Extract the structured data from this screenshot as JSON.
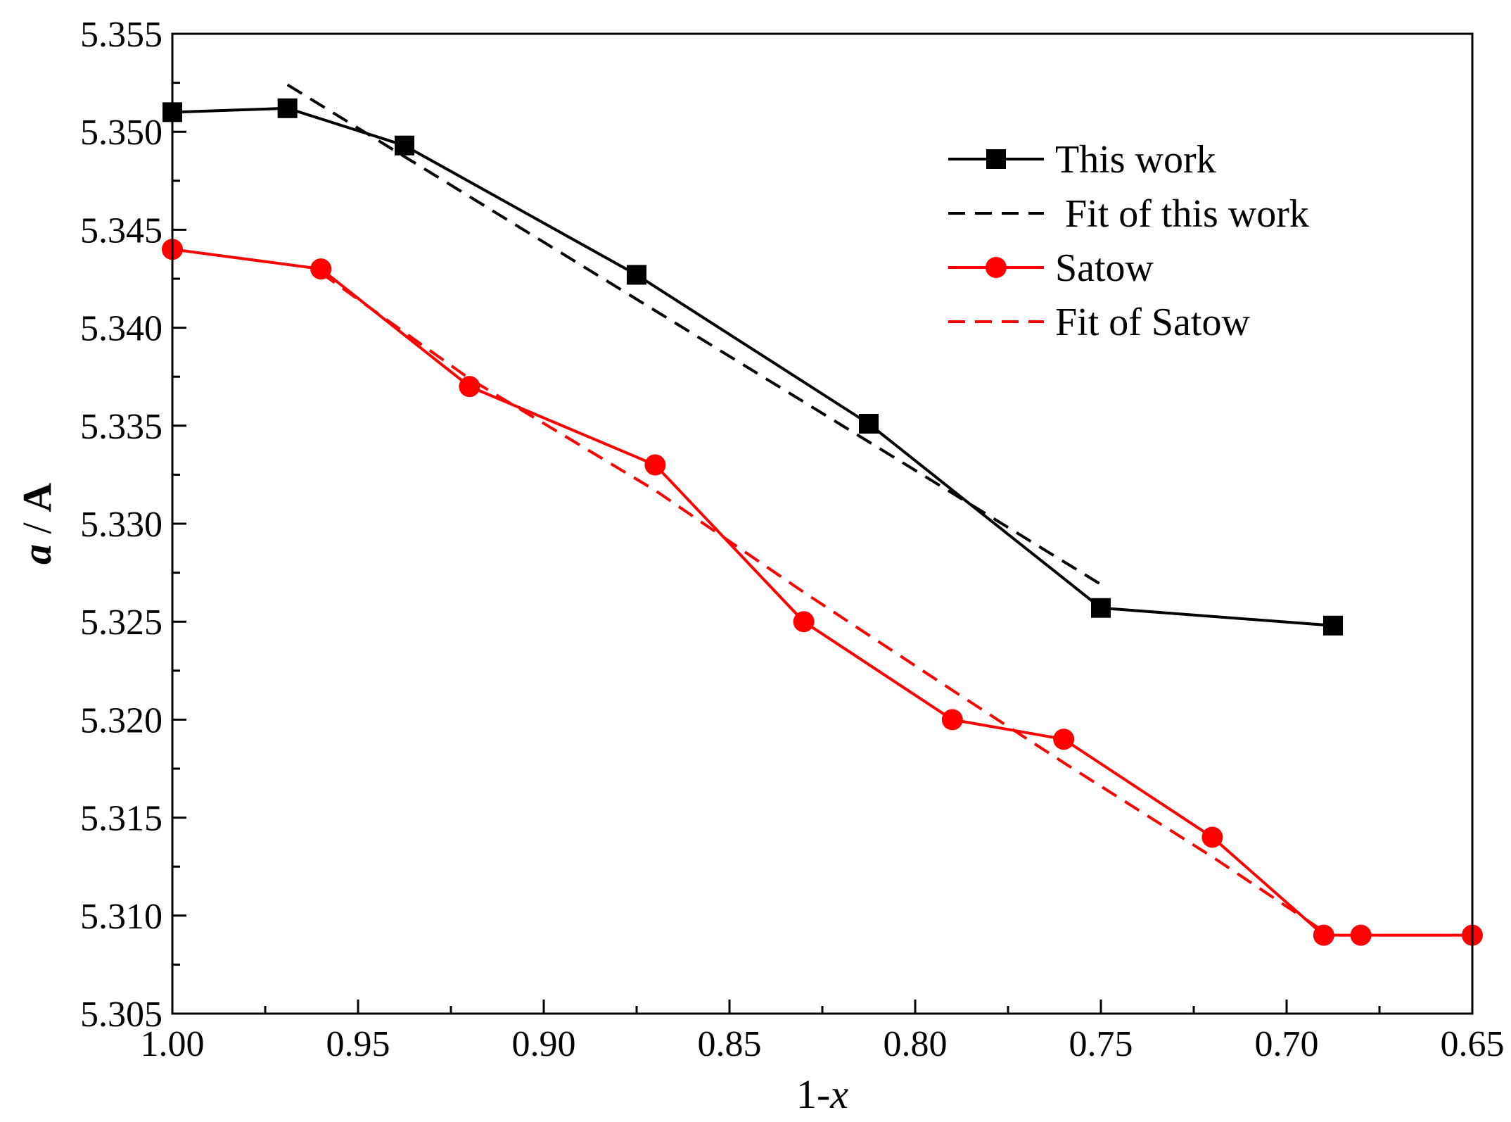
{
  "chart_data": {
    "type": "line",
    "title": "",
    "xlabel_prefix": "1-",
    "xlabel_var": "x",
    "ylabel_var": "a",
    "ylabel_sep": " / ",
    "ylabel_unit": "A",
    "xlim": [
      1.0,
      0.65
    ],
    "ylim": [
      5.305,
      5.355
    ],
    "x_reversed": true,
    "x_ticks": [
      1.0,
      0.95,
      0.9,
      0.85,
      0.8,
      0.75,
      0.7,
      0.65
    ],
    "x_tick_labels": [
      "1.00",
      "0.95",
      "0.90",
      "0.85",
      "0.80",
      "0.75",
      "0.70",
      "0.65"
    ],
    "y_ticks": [
      5.305,
      5.31,
      5.315,
      5.32,
      5.325,
      5.33,
      5.335,
      5.34,
      5.345,
      5.35,
      5.355
    ],
    "y_tick_labels": [
      "5.305",
      "5.310",
      "5.315",
      "5.320",
      "5.325",
      "5.330",
      "5.335",
      "5.340",
      "5.345",
      "5.350",
      "5.355"
    ],
    "grid": false,
    "legend_position": "top-right",
    "series": [
      {
        "name": "This work",
        "style": "line-square",
        "color": "#000000",
        "x": [
          1.0,
          0.969,
          0.9375,
          0.875,
          0.8125,
          0.75,
          0.6875
        ],
        "y": [
          5.351,
          5.3512,
          5.3493,
          5.3427,
          5.3351,
          5.3257,
          5.3248
        ]
      },
      {
        "name": " Fit of this work",
        "style": "dashed",
        "color": "#000000",
        "x": [
          0.969,
          0.75
        ],
        "y": [
          5.3524,
          5.3269
        ]
      },
      {
        "name": "Satow",
        "style": "line-circle",
        "color": "#ff0000",
        "x": [
          1.0,
          0.96,
          0.92,
          0.87,
          0.83,
          0.79,
          0.76,
          0.72,
          0.69,
          0.68,
          0.65
        ],
        "y": [
          5.344,
          5.343,
          5.337,
          5.333,
          5.325,
          5.32,
          5.319,
          5.314,
          5.309,
          5.309,
          5.309
        ]
      },
      {
        "name": "Fit of Satow",
        "style": "dashed",
        "color": "#ff0000",
        "x": [
          0.96,
          0.92,
          0.87,
          0.83,
          0.79,
          0.76,
          0.72,
          0.69
        ],
        "y": [
          5.3428,
          5.3374,
          5.3317,
          5.3265,
          5.3215,
          5.3178,
          5.313,
          5.3092
        ]
      }
    ]
  }
}
